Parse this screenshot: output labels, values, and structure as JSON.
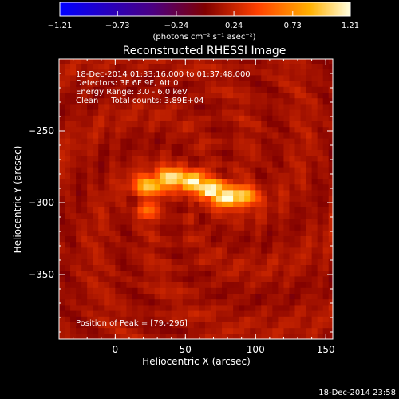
{
  "chart_data": {
    "type": "heatmap",
    "title": "Reconstructed RHESSI Image",
    "xlabel": "Heliocentric X (arcsec)",
    "ylabel": "Heliocentric Y (arcsec)",
    "xlim": [
      -40,
      155
    ],
    "ylim": [
      -395,
      -200
    ],
    "x_ticks": [
      0,
      50,
      100,
      150
    ],
    "y_ticks": [
      -250,
      -300,
      -350
    ],
    "x_tick_labels": [
      "0",
      "50",
      "100",
      "150"
    ],
    "y_tick_labels": [
      "−250",
      "−300",
      "−350"
    ],
    "colorbar": {
      "min": -1.21,
      "max": 1.21,
      "ticks": [
        -1.21,
        -0.73,
        -0.24,
        0.24,
        0.73,
        1.21
      ],
      "tick_labels": [
        "−1.21",
        "−0.73",
        "−0.24",
        "0.24",
        "0.73",
        "1.21"
      ],
      "unit_label": "(photons cm⁻² s⁻¹ asec⁻²)"
    },
    "annotations": [
      "18-Dec-2014 01:33:16.000 to 01:37:48.000",
      "Detectors: 3F 6F 9F, Att 0",
      "Energy Range: 3.0 - 6.0 keV",
      "Clean     Total counts: 3.89E+04"
    ],
    "peak_label": "Position of Peak = [79,-296]",
    "peak": [
      79,
      -296
    ],
    "source": {
      "description_points": [
        {
          "x": 25,
          "y": -288,
          "value": 1.0
        },
        {
          "x": 40,
          "y": -283,
          "value": 1.15
        },
        {
          "x": 55,
          "y": -285,
          "value": 1.15
        },
        {
          "x": 68,
          "y": -290,
          "value": 1.18
        },
        {
          "x": 79,
          "y": -296,
          "value": 1.21
        },
        {
          "x": 90,
          "y": -295,
          "value": 1.05
        }
      ]
    },
    "footer_timestamp": "18-Dec-2014 23:58"
  }
}
